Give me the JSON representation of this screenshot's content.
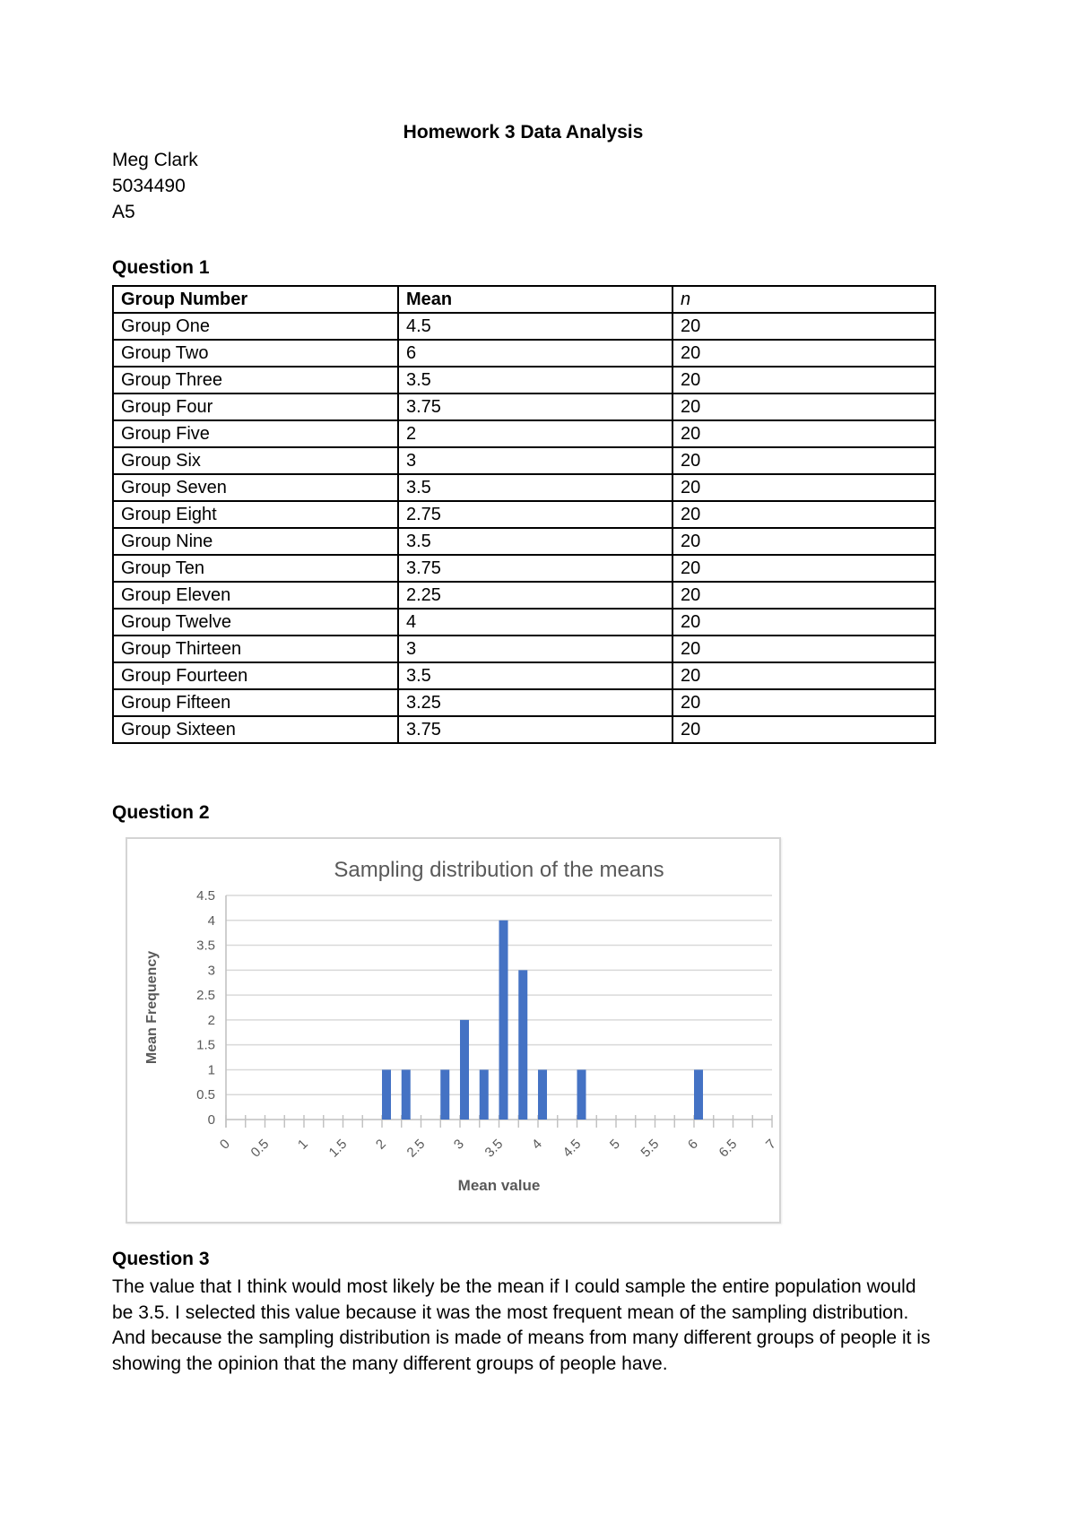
{
  "header": {
    "title": "Homework 3 Data Analysis",
    "author": "Meg Clark",
    "student_id": "5034490",
    "section": "A5"
  },
  "question1": {
    "heading": "Question 1",
    "table": {
      "headers": [
        "Group Number",
        "Mean",
        "n"
      ],
      "rows": [
        [
          "Group One",
          "4.5",
          "20"
        ],
        [
          "Group Two",
          "6",
          "20"
        ],
        [
          "Group Three",
          "3.5",
          "20"
        ],
        [
          "Group Four",
          "3.75",
          "20"
        ],
        [
          "Group Five",
          "2",
          "20"
        ],
        [
          "Group Six",
          "3",
          "20"
        ],
        [
          "Group Seven",
          "3.5",
          "20"
        ],
        [
          "Group Eight",
          "2.75",
          "20"
        ],
        [
          "Group Nine",
          "3.5",
          "20"
        ],
        [
          "Group Ten",
          "3.75",
          "20"
        ],
        [
          "Group Eleven",
          "2.25",
          "20"
        ],
        [
          "Group Twelve",
          "4",
          "20"
        ],
        [
          "Group Thirteen",
          "3",
          "20"
        ],
        [
          "Group Fourteen",
          "3.5",
          "20"
        ],
        [
          "Group Fifteen",
          "3.25",
          "20"
        ],
        [
          "Group Sixteen",
          "3.75",
          "20"
        ]
      ]
    }
  },
  "question2": {
    "heading": "Question 2"
  },
  "question3": {
    "heading": "Question 3",
    "text": "The value that I think would most likely be the mean if I could sample the entire population would be 3.5. I selected this value because it was the most frequent mean of the sampling distribution. And because the sampling distribution is made of means from many different groups of people it is showing the opinion that the many different groups of people have."
  },
  "chart_data": {
    "type": "bar",
    "title": "Sampling distribution of the means",
    "xlabel": "Mean value",
    "ylabel": "Mean Frequency",
    "x": [
      2,
      2.25,
      2.75,
      3,
      3.25,
      3.5,
      3.75,
      4,
      4.5,
      6
    ],
    "values": [
      1,
      1,
      1,
      2,
      1,
      4,
      3,
      1,
      1,
      1
    ],
    "xlim": [
      0,
      7
    ],
    "ylim": [
      0,
      4.5
    ],
    "x_major_tick_step": 0.5,
    "x_minor_tick_step": 0.25,
    "y_tick_step": 0.5,
    "x_tick_labels": [
      "0",
      "0.5",
      "1",
      "1.5",
      "2",
      "2.5",
      "3",
      "3.5",
      "4",
      "4.5",
      "5",
      "5.5",
      "6",
      "6.5",
      "7"
    ],
    "y_tick_labels": [
      "0",
      "0.5",
      "1",
      "1.5",
      "2",
      "2.5",
      "3",
      "3.5",
      "4",
      "4.5"
    ],
    "grid": true,
    "legend_position": "none",
    "bar_color": "#4472C4",
    "grid_color": "#D9D9D9",
    "axis_color": "#BFBFBF",
    "text_color": "#595959"
  }
}
